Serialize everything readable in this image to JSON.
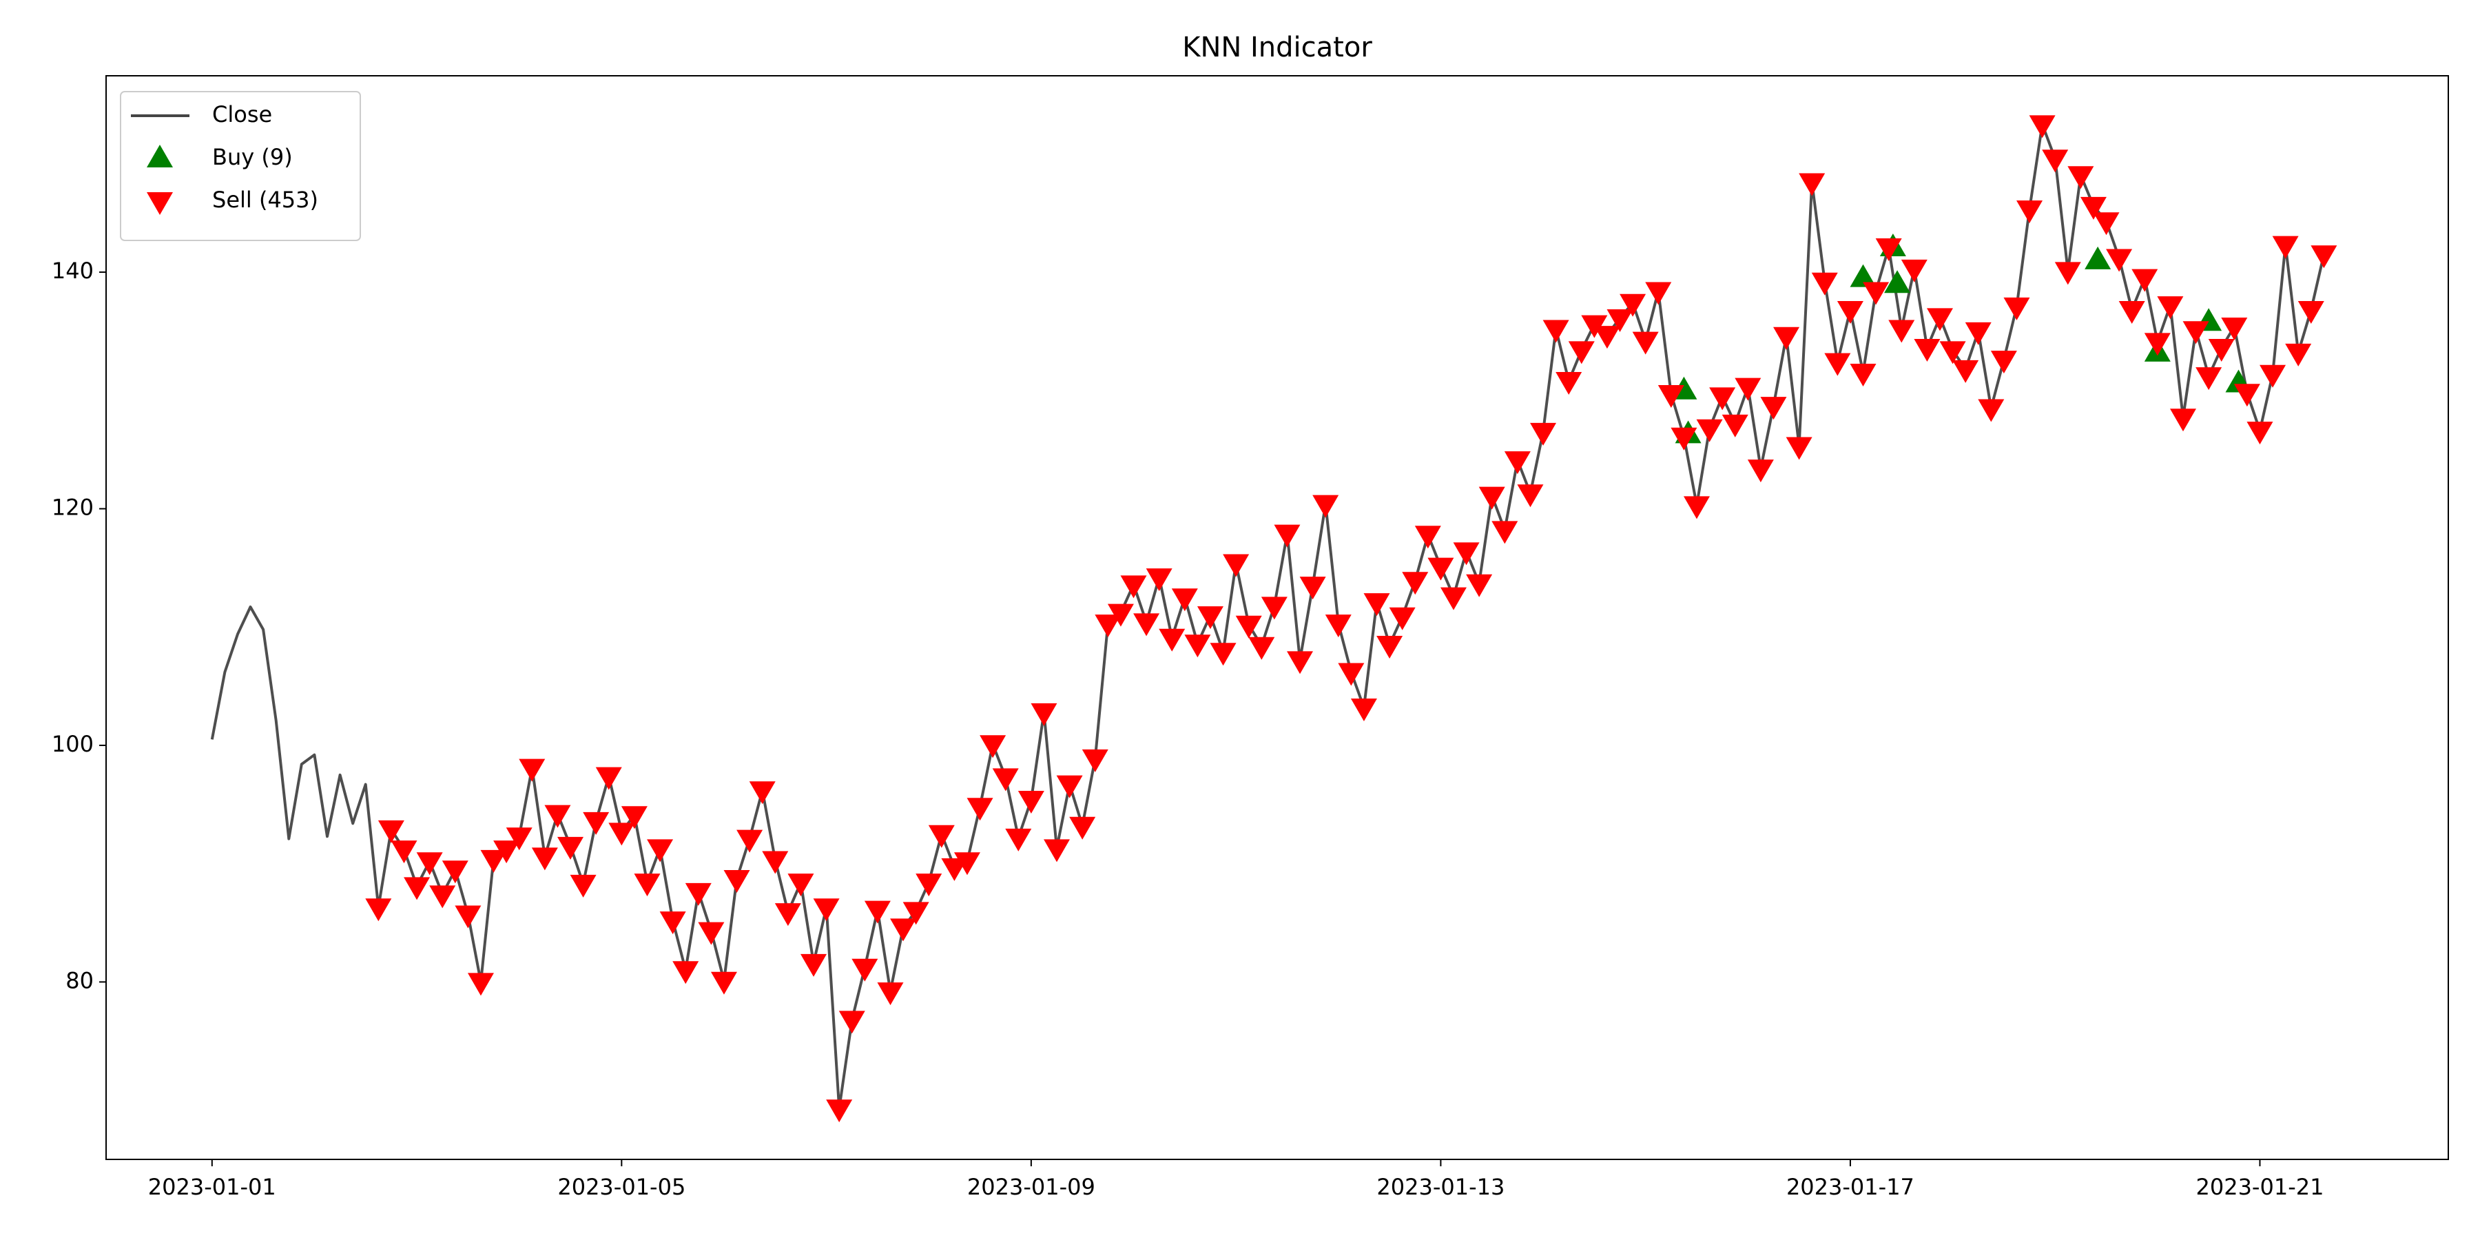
{
  "chart_data": {
    "type": "line",
    "title": "KNN Indicator",
    "legend": "upper left",
    "xlim": [
      "2022-12-30 23:10",
      "2023-01-22 20:10"
    ],
    "xticks": [
      "2023-01-01",
      "2023-01-05",
      "2023-01-09",
      "2023-01-13",
      "2023-01-17",
      "2023-01-21"
    ],
    "ylim": [
      65.0,
      156.6
    ],
    "yticks": [
      80,
      100,
      120,
      140
    ],
    "series": [
      {
        "name": "Close",
        "type": "line",
        "color": "#444444",
        "x": [
          "2023-01-01 00:00",
          "2023-01-01 03:00",
          "2023-01-01 06:00",
          "2023-01-01 09:00",
          "2023-01-01 12:00",
          "2023-01-01 15:00",
          "2023-01-01 18:00",
          "2023-01-01 21:00",
          "2023-01-02 00:00",
          "2023-01-02 03:00",
          "2023-01-02 06:00",
          "2023-01-02 09:00",
          "2023-01-02 12:00",
          "2023-01-02 15:00",
          "2023-01-02 18:00",
          "2023-01-02 21:00",
          "2023-01-03 00:00",
          "2023-01-03 03:00",
          "2023-01-03 06:00",
          "2023-01-03 09:00",
          "2023-01-03 12:00",
          "2023-01-03 15:00",
          "2023-01-03 18:00",
          "2023-01-03 21:00",
          "2023-01-04 00:00",
          "2023-01-04 03:00",
          "2023-01-04 06:00",
          "2023-01-04 09:00",
          "2023-01-04 12:00",
          "2023-01-04 15:00",
          "2023-01-04 18:00",
          "2023-01-04 21:00",
          "2023-01-05 00:00",
          "2023-01-05 03:00",
          "2023-01-05 06:00",
          "2023-01-05 09:00",
          "2023-01-05 12:00",
          "2023-01-05 15:00",
          "2023-01-05 18:00",
          "2023-01-05 21:00",
          "2023-01-06 00:00",
          "2023-01-06 03:00",
          "2023-01-06 06:00",
          "2023-01-06 09:00",
          "2023-01-06 12:00",
          "2023-01-06 15:00",
          "2023-01-06 18:00",
          "2023-01-06 21:00",
          "2023-01-07 00:00",
          "2023-01-07 03:00",
          "2023-01-07 06:00",
          "2023-01-07 09:00",
          "2023-01-07 12:00",
          "2023-01-07 15:00",
          "2023-01-07 18:00",
          "2023-01-07 21:00",
          "2023-01-08 00:00",
          "2023-01-08 03:00",
          "2023-01-08 06:00",
          "2023-01-08 09:00",
          "2023-01-08 12:00",
          "2023-01-08 15:00",
          "2023-01-08 18:00",
          "2023-01-08 21:00",
          "2023-01-09 00:00",
          "2023-01-09 03:00",
          "2023-01-09 06:00",
          "2023-01-09 09:00",
          "2023-01-09 12:00",
          "2023-01-09 15:00",
          "2023-01-09 18:00",
          "2023-01-09 21:00",
          "2023-01-10 00:00",
          "2023-01-10 03:00",
          "2023-01-10 06:00",
          "2023-01-10 09:00",
          "2023-01-10 12:00",
          "2023-01-10 15:00",
          "2023-01-10 18:00",
          "2023-01-10 21:00",
          "2023-01-11 00:00",
          "2023-01-11 03:00",
          "2023-01-11 06:00",
          "2023-01-11 09:00",
          "2023-01-11 12:00",
          "2023-01-11 15:00",
          "2023-01-11 18:00",
          "2023-01-11 21:00",
          "2023-01-12 00:00",
          "2023-01-12 03:00",
          "2023-01-12 06:00",
          "2023-01-12 09:00",
          "2023-01-12 12:00",
          "2023-01-12 15:00",
          "2023-01-12 18:00",
          "2023-01-12 21:00",
          "2023-01-13 00:00",
          "2023-01-13 03:00",
          "2023-01-13 06:00",
          "2023-01-13 09:00",
          "2023-01-13 12:00",
          "2023-01-13 15:00",
          "2023-01-13 18:00",
          "2023-01-13 21:00",
          "2023-01-14 00:00",
          "2023-01-14 03:00",
          "2023-01-14 06:00",
          "2023-01-14 09:00",
          "2023-01-14 12:00",
          "2023-01-14 15:00",
          "2023-01-14 18:00",
          "2023-01-14 21:00",
          "2023-01-15 00:00",
          "2023-01-15 03:00",
          "2023-01-15 06:00",
          "2023-01-15 09:00",
          "2023-01-15 12:00",
          "2023-01-15 15:00",
          "2023-01-15 18:00",
          "2023-01-15 21:00",
          "2023-01-16 00:00",
          "2023-01-16 03:00",
          "2023-01-16 06:00",
          "2023-01-16 09:00",
          "2023-01-16 12:00",
          "2023-01-16 15:00",
          "2023-01-16 18:00",
          "2023-01-16 21:00",
          "2023-01-17 00:00",
          "2023-01-17 03:00",
          "2023-01-17 06:00",
          "2023-01-17 09:00",
          "2023-01-17 12:00",
          "2023-01-17 15:00",
          "2023-01-17 18:00",
          "2023-01-17 21:00",
          "2023-01-18 00:00",
          "2023-01-18 03:00",
          "2023-01-18 06:00",
          "2023-01-18 09:00",
          "2023-01-18 12:00",
          "2023-01-18 15:00",
          "2023-01-18 18:00",
          "2023-01-18 21:00",
          "2023-01-19 00:00",
          "2023-01-19 03:00",
          "2023-01-19 06:00",
          "2023-01-19 09:00",
          "2023-01-19 12:00",
          "2023-01-19 15:00",
          "2023-01-19 18:00",
          "2023-01-19 21:00",
          "2023-01-20 00:00",
          "2023-01-20 03:00",
          "2023-01-20 06:00",
          "2023-01-20 09:00",
          "2023-01-20 12:00",
          "2023-01-20 15:00",
          "2023-01-20 18:00",
          "2023-01-20 21:00",
          "2023-01-21 00:00",
          "2023-01-21 03:00",
          "2023-01-21 06:00",
          "2023-01-21 09:00",
          "2023-01-21 12:00",
          "2023-01-21 15:00"
        ],
        "values": [
          100.5,
          106.2,
          109.4,
          111.7,
          109.8,
          102.1,
          92.1,
          98.4,
          99.2,
          92.3,
          97.5,
          93.4,
          96.7,
          86.3,
          92.9,
          91.2,
          88.1,
          90.2,
          87.4,
          89.5,
          85.7,
          80.0,
          90.4,
          91.2,
          92.3,
          98.1,
          90.6,
          94.2,
          91.5,
          88.3,
          93.6,
          97.4,
          92.7,
          94.1,
          88.4,
          91.3,
          85.2,
          81.0,
          87.6,
          84.3,
          80.1,
          88.7,
          92.1,
          96.2,
          90.3,
          85.9,
          88.4,
          81.6,
          86.3,
          69.3,
          76.8,
          81.2,
          86.1,
          79.2,
          84.6,
          86.0,
          88.4,
          92.5,
          89.7,
          90.2,
          94.8,
          100.1,
          97.3,
          92.2,
          95.4,
          102.8,
          91.3,
          96.7,
          93.2,
          98.9,
          110.3,
          111.2,
          113.6,
          110.4,
          114.2,
          109.1,
          112.5,
          108.6,
          111.0,
          107.9,
          115.4,
          110.2,
          108.4,
          111.8,
          117.9,
          107.2,
          113.5,
          120.4,
          110.3,
          106.2,
          103.2,
          112.1,
          108.5,
          110.9,
          113.9,
          117.8,
          115.1,
          112.6,
          116.4,
          113.7,
          121.1,
          118.2,
          124.1,
          121.3,
          126.5,
          135.2,
          130.8,
          133.4,
          135.6,
          134.7,
          136.1,
          137.4,
          134.2,
          138.4,
          129.7,
          126.1,
          120.3,
          126.8,
          129.5,
          127.2,
          130.3,
          123.4,
          128.7,
          134.6,
          125.3,
          147.6,
          139.2,
          132.4,
          136.8,
          131.5,
          138.4,
          142.1,
          135.2,
          140.3,
          133.6,
          136.2,
          133.4,
          131.8,
          135.0,
          128.5,
          132.6,
          137.1,
          145.3,
          152.5,
          149.6,
          140.1,
          148.2,
          145.6,
          144.3,
          141.2,
          136.8,
          139.5,
          134.1,
          137.2,
          127.7,
          135.1,
          131.2,
          133.6,
          135.4,
          129.8,
          126.6,
          131.4,
          142.3,
          133.2,
          136.8,
          141.5
        ]
      },
      {
        "name": "Buy (9)",
        "type": "scatter",
        "marker": "^",
        "color": "#008000",
        "x": [
          "2023-01-15 09:00",
          "2023-01-15 10:00",
          "2023-01-17 03:00",
          "2023-01-17 10:00",
          "2023-01-17 11:00",
          "2023-01-19 10:00",
          "2023-01-20 00:00",
          "2023-01-20 12:00",
          "2023-01-20 19:00"
        ],
        "values": [
          130.0,
          126.3,
          139.5,
          142.1,
          139.0,
          141.0,
          133.2,
          135.8,
          130.6
        ]
      },
      {
        "name": "Sell (453)",
        "type": "scatter",
        "marker": "v",
        "color": "#ff0000",
        "x": [
          "2023-01-02 15:00",
          "2023-01-02 18:00",
          "2023-01-02 21:00",
          "2023-01-03 00:00",
          "2023-01-03 03:00",
          "2023-01-03 06:00",
          "2023-01-03 09:00",
          "2023-01-03 12:00",
          "2023-01-03 15:00",
          "2023-01-03 18:00",
          "2023-01-03 21:00",
          "2023-01-04 00:00",
          "2023-01-04 03:00",
          "2023-01-04 06:00",
          "2023-01-04 09:00",
          "2023-01-04 12:00",
          "2023-01-04 15:00",
          "2023-01-04 18:00",
          "2023-01-04 21:00",
          "2023-01-05 00:00",
          "2023-01-05 03:00",
          "2023-01-05 06:00",
          "2023-01-05 09:00",
          "2023-01-05 12:00",
          "2023-01-05 15:00",
          "2023-01-05 18:00",
          "2023-01-05 21:00",
          "2023-01-06 00:00",
          "2023-01-06 03:00",
          "2023-01-06 06:00",
          "2023-01-06 09:00",
          "2023-01-06 12:00",
          "2023-01-06 15:00",
          "2023-01-06 18:00",
          "2023-01-06 21:00",
          "2023-01-07 00:00",
          "2023-01-07 03:00",
          "2023-01-07 06:00",
          "2023-01-07 09:00",
          "2023-01-07 12:00",
          "2023-01-07 15:00",
          "2023-01-07 18:00",
          "2023-01-07 21:00",
          "2023-01-08 00:00",
          "2023-01-08 03:00",
          "2023-01-08 06:00",
          "2023-01-08 09:00",
          "2023-01-08 12:00",
          "2023-01-08 15:00",
          "2023-01-08 18:00",
          "2023-01-08 21:00",
          "2023-01-09 00:00",
          "2023-01-09 03:00",
          "2023-01-09 06:00",
          "2023-01-09 09:00",
          "2023-01-09 12:00",
          "2023-01-09 15:00",
          "2023-01-09 18:00",
          "2023-01-09 21:00",
          "2023-01-10 00:00",
          "2023-01-10 03:00",
          "2023-01-10 06:00",
          "2023-01-10 09:00",
          "2023-01-10 12:00",
          "2023-01-10 15:00",
          "2023-01-10 18:00",
          "2023-01-10 21:00",
          "2023-01-11 00:00",
          "2023-01-11 03:00",
          "2023-01-11 06:00",
          "2023-01-11 09:00",
          "2023-01-11 12:00",
          "2023-01-11 15:00",
          "2023-01-11 18:00",
          "2023-01-11 21:00",
          "2023-01-12 00:00",
          "2023-01-12 03:00",
          "2023-01-12 06:00",
          "2023-01-12 09:00",
          "2023-01-12 12:00",
          "2023-01-12 15:00",
          "2023-01-12 18:00",
          "2023-01-12 21:00",
          "2023-01-13 00:00",
          "2023-01-13 03:00",
          "2023-01-13 06:00",
          "2023-01-13 09:00",
          "2023-01-13 12:00",
          "2023-01-13 15:00",
          "2023-01-13 18:00",
          "2023-01-13 21:00",
          "2023-01-14 00:00",
          "2023-01-14 03:00",
          "2023-01-14 06:00",
          "2023-01-14 09:00",
          "2023-01-14 12:00",
          "2023-01-14 15:00",
          "2023-01-14 18:00",
          "2023-01-14 21:00",
          "2023-01-15 00:00",
          "2023-01-15 03:00",
          "2023-01-15 06:00",
          "2023-01-15 09:00",
          "2023-01-15 12:00",
          "2023-01-15 15:00",
          "2023-01-15 18:00",
          "2023-01-15 21:00",
          "2023-01-16 00:00",
          "2023-01-16 03:00",
          "2023-01-16 06:00",
          "2023-01-16 09:00",
          "2023-01-16 12:00",
          "2023-01-16 15:00",
          "2023-01-16 18:00",
          "2023-01-16 21:00",
          "2023-01-17 00:00",
          "2023-01-17 03:00",
          "2023-01-17 06:00",
          "2023-01-17 09:00",
          "2023-01-17 12:00",
          "2023-01-17 15:00",
          "2023-01-17 18:00",
          "2023-01-17 21:00",
          "2023-01-18 00:00",
          "2023-01-18 03:00",
          "2023-01-18 06:00",
          "2023-01-18 09:00",
          "2023-01-18 12:00",
          "2023-01-18 15:00",
          "2023-01-18 18:00",
          "2023-01-18 21:00",
          "2023-01-19 00:00",
          "2023-01-19 03:00",
          "2023-01-19 06:00",
          "2023-01-19 09:00",
          "2023-01-19 12:00",
          "2023-01-19 15:00",
          "2023-01-19 18:00",
          "2023-01-19 21:00",
          "2023-01-20 00:00",
          "2023-01-20 03:00",
          "2023-01-20 06:00",
          "2023-01-20 09:00",
          "2023-01-20 12:00",
          "2023-01-20 15:00",
          "2023-01-20 18:00",
          "2023-01-20 21:00",
          "2023-01-21 00:00",
          "2023-01-21 03:00",
          "2023-01-21 06:00",
          "2023-01-21 09:00",
          "2023-01-21 12:00",
          "2023-01-21 15:00"
        ],
        "values": [
          86.3,
          92.9,
          91.2,
          88.1,
          90.2,
          87.4,
          89.5,
          85.7,
          80.0,
          90.4,
          91.2,
          92.3,
          98.1,
          90.6,
          94.2,
          91.5,
          88.3,
          93.6,
          97.4,
          92.7,
          94.1,
          88.4,
          91.3,
          85.2,
          81.0,
          87.6,
          84.3,
          80.1,
          88.7,
          92.1,
          96.2,
          90.3,
          85.9,
          88.4,
          81.6,
          86.3,
          69.3,
          76.8,
          81.2,
          86.1,
          79.2,
          84.6,
          86.0,
          88.4,
          92.5,
          89.7,
          90.2,
          94.8,
          100.1,
          97.3,
          92.2,
          95.4,
          102.8,
          91.3,
          96.7,
          93.2,
          98.9,
          110.3,
          111.2,
          113.6,
          110.4,
          114.2,
          109.1,
          112.5,
          108.6,
          111.0,
          107.9,
          115.4,
          110.2,
          108.4,
          111.8,
          117.9,
          107.2,
          113.5,
          120.4,
          110.3,
          106.2,
          103.2,
          112.1,
          108.5,
          110.9,
          113.9,
          117.8,
          115.1,
          112.6,
          116.4,
          113.7,
          121.1,
          118.2,
          124.1,
          121.3,
          126.5,
          135.2,
          130.8,
          133.4,
          135.6,
          134.7,
          136.1,
          137.4,
          134.2,
          138.4,
          129.7,
          126.1,
          120.3,
          126.8,
          129.5,
          127.2,
          130.3,
          123.4,
          128.7,
          134.6,
          125.3,
          147.6,
          139.2,
          132.4,
          136.8,
          131.5,
          138.4,
          142.1,
          135.2,
          140.3,
          133.6,
          136.2,
          133.4,
          131.8,
          135.0,
          128.5,
          132.6,
          137.1,
          145.3,
          152.5,
          149.6,
          140.1,
          148.2,
          145.6,
          144.3,
          141.2,
          136.8,
          139.5,
          134.1,
          137.2,
          127.7,
          135.1,
          131.2,
          133.6,
          135.4,
          129.8,
          126.6,
          131.4,
          142.3,
          133.2,
          136.8,
          141.5
        ]
      }
    ]
  }
}
